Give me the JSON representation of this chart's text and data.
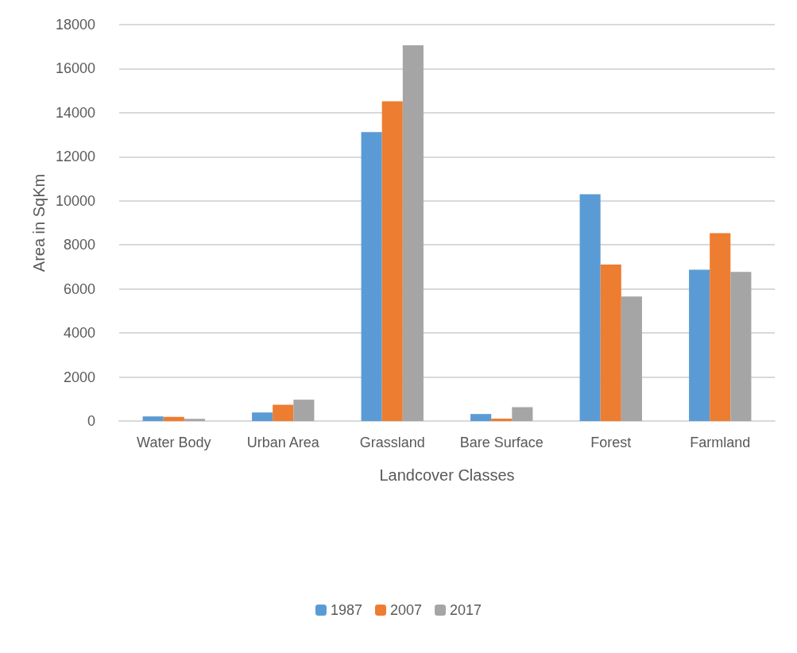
{
  "chart_data": {
    "type": "bar",
    "xlabel": "Landcover Classes",
    "ylabel": "Area in SqKm",
    "categories": [
      "Water Body",
      "Urban Area",
      "Grassland",
      "Bare Surface",
      "Forest",
      "Farmland"
    ],
    "series": [
      {
        "name": "1987",
        "color": "#5b9bd5",
        "values": [
          210,
          390,
          13120,
          320,
          10300,
          6870
        ]
      },
      {
        "name": "2007",
        "color": "#ed7d31",
        "values": [
          190,
          740,
          14520,
          110,
          7110,
          8530
        ]
      },
      {
        "name": "2017",
        "color": "#a5a5a5",
        "values": [
          100,
          970,
          17060,
          630,
          5650,
          6770
        ]
      }
    ],
    "ylim": [
      0,
      18000
    ],
    "yticks": [
      0,
      2000,
      4000,
      6000,
      8000,
      10000,
      12000,
      14000,
      16000,
      18000
    ],
    "grid": "y",
    "legend": "bottom"
  }
}
